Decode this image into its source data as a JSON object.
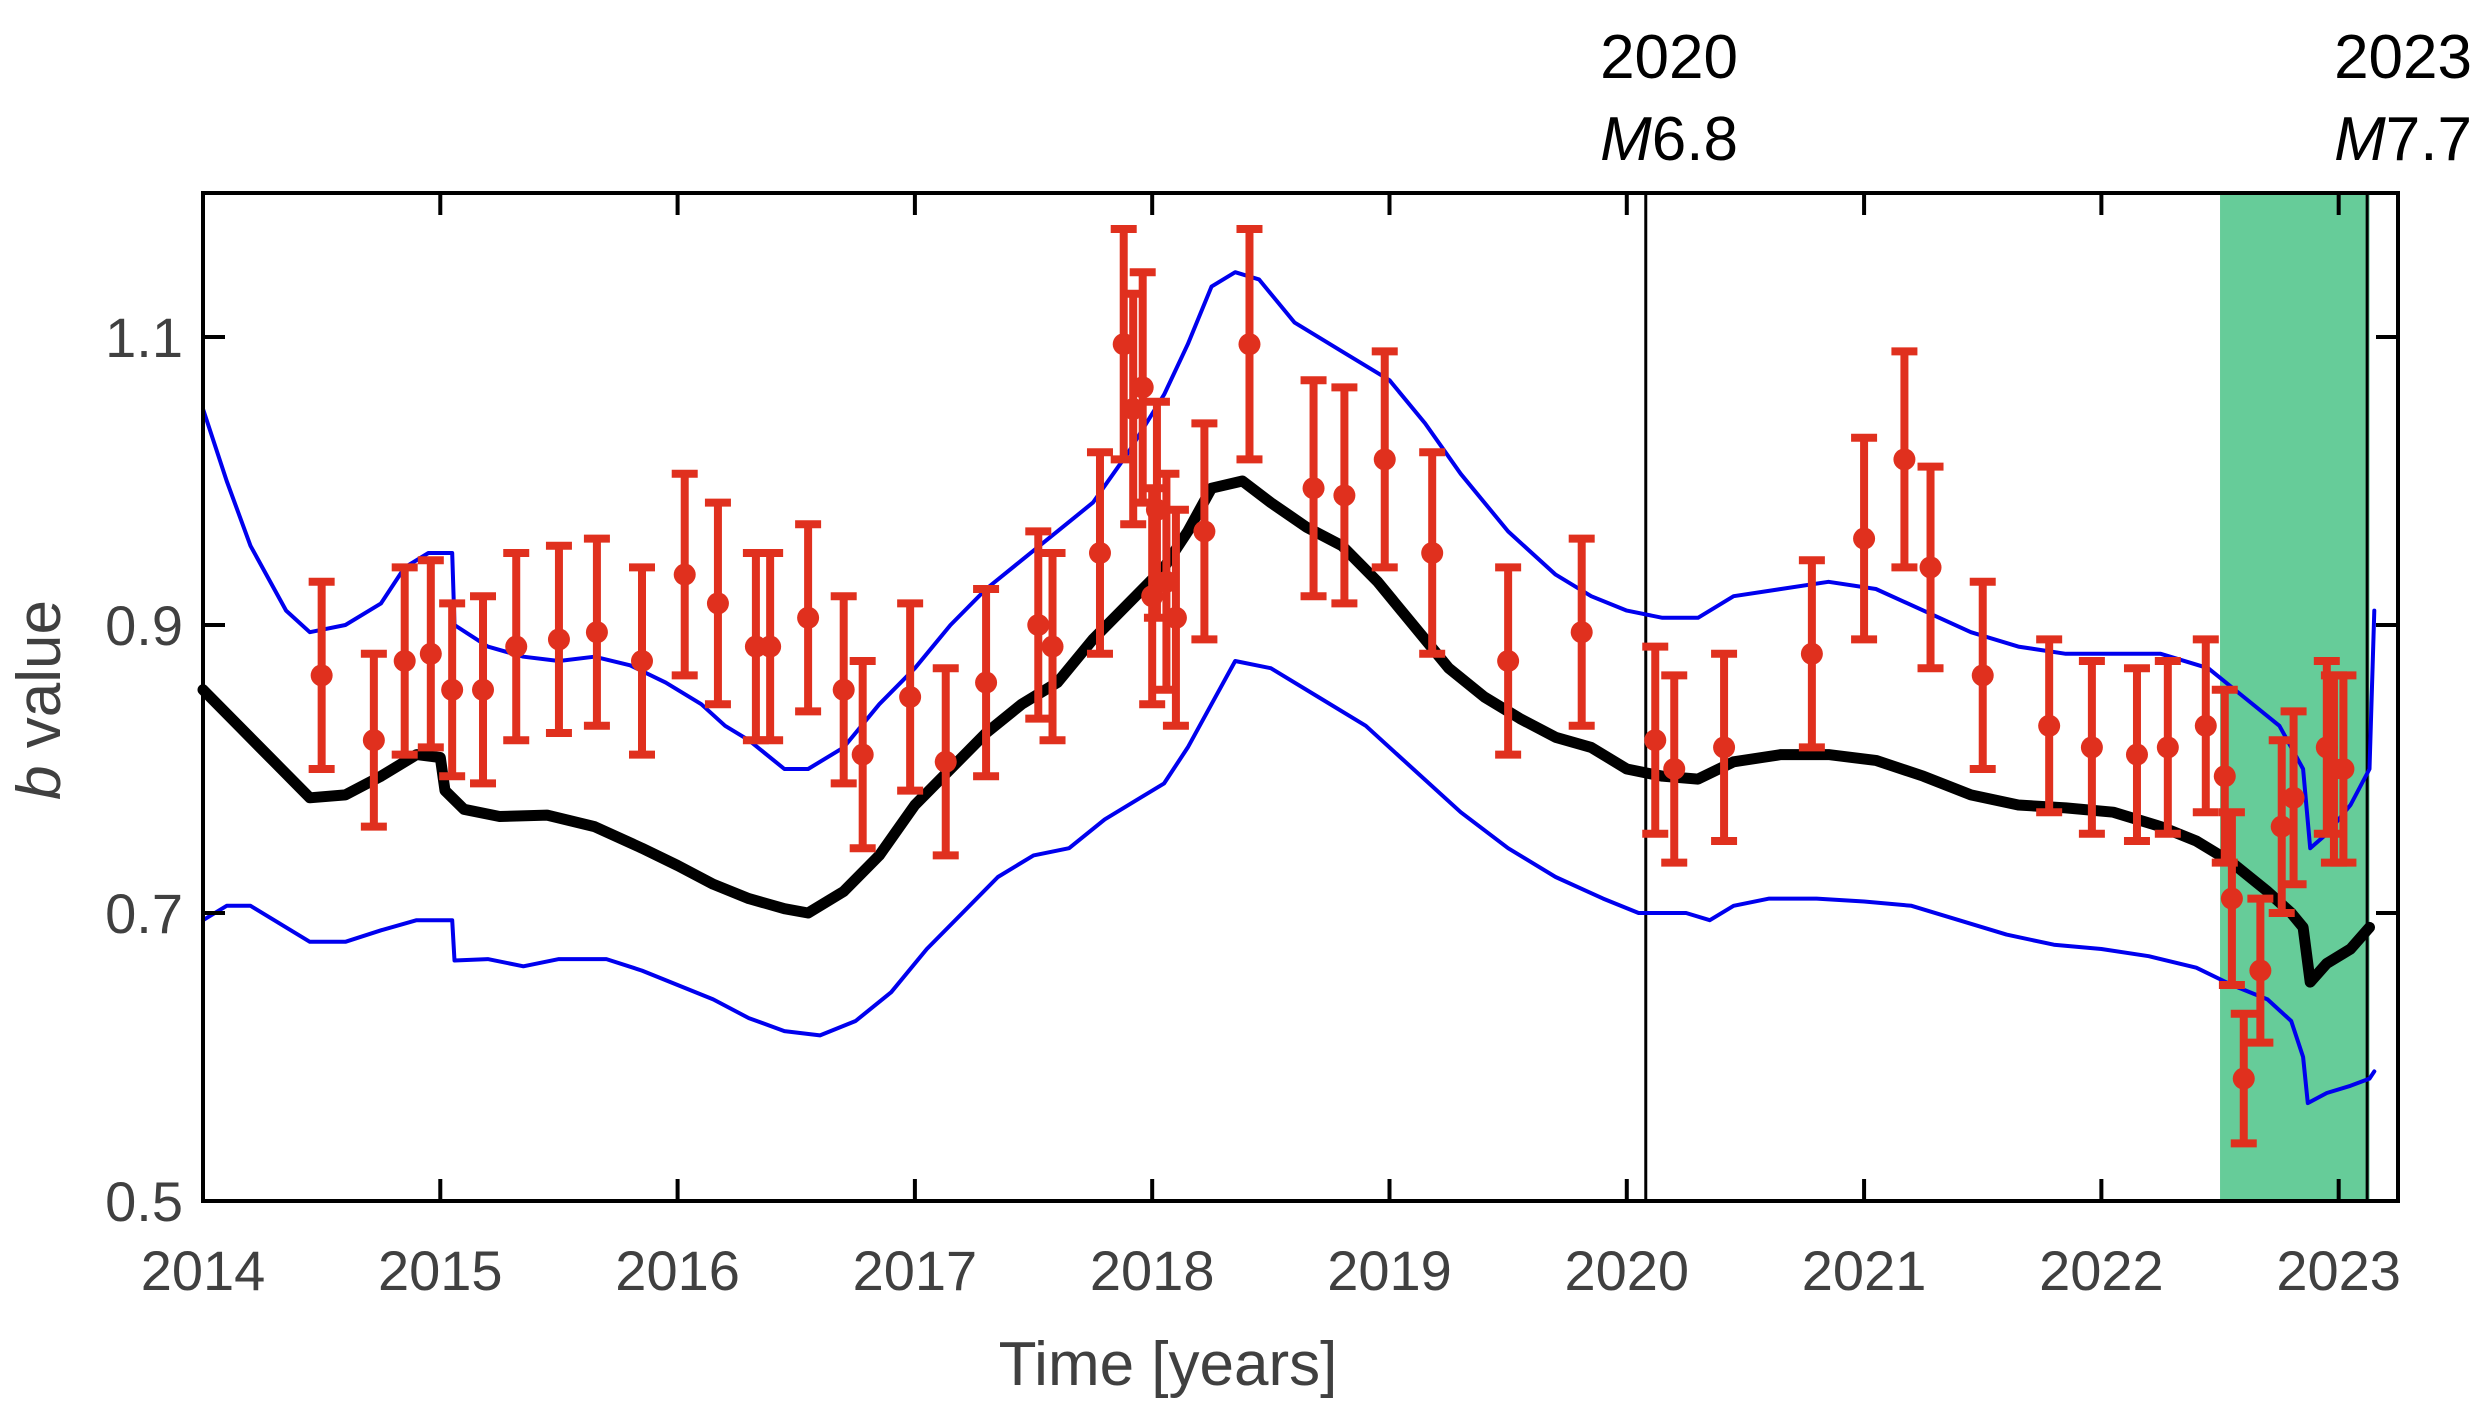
{
  "chart_data": {
    "type": "line",
    "xlabel": "Time [years]",
    "ylabel_italic": "b",
    "ylabel_rest": " value",
    "xlim": [
      2014,
      2023.25
    ],
    "ylim": [
      0.5,
      1.2
    ],
    "xticks": [
      "2014",
      "2015",
      "2016",
      "2017",
      "2018",
      "2019",
      "2020",
      "2021",
      "2022",
      "2023"
    ],
    "yticks": [
      "0.5",
      "0.7",
      "0.9",
      "1.1"
    ],
    "colors": {
      "mean": "#000000",
      "bounds": "#0000ee",
      "points": "#e0301e",
      "shade": "#66cc99",
      "axis": "#000000",
      "tick_text": "#404040"
    },
    "shaded_region": {
      "x": [
        2022.5,
        2023.13
      ]
    },
    "events": [
      {
        "x": 2020.08,
        "year": "2020",
        "mag_prefix": "M",
        "mag_value": "6.8"
      },
      {
        "x": 2023.12,
        "year": "2023",
        "mag_prefix": "M",
        "mag_value": "7.7"
      }
    ],
    "series": [
      {
        "name": "b-value mean",
        "style": "thick black line",
        "x": [
          2014.0,
          2014.15,
          2014.3,
          2014.45,
          2014.6,
          2014.75,
          2014.9,
          2015.0,
          2015.02,
          2015.1,
          2015.25,
          2015.45,
          2015.65,
          2015.85,
          2016.0,
          2016.15,
          2016.3,
          2016.45,
          2016.55,
          2016.7,
          2016.85,
          2017.0,
          2017.15,
          2017.3,
          2017.45,
          2017.6,
          2017.75,
          2017.9,
          2018.05,
          2018.15,
          2018.25,
          2018.38,
          2018.5,
          2018.65,
          2018.8,
          2018.95,
          2019.1,
          2019.25,
          2019.4,
          2019.55,
          2019.7,
          2019.85,
          2020.0,
          2020.15,
          2020.3,
          2020.45,
          2020.65,
          2020.85,
          2021.05,
          2021.25,
          2021.45,
          2021.65,
          2021.85,
          2022.05,
          2022.25,
          2022.4,
          2022.55,
          2022.7,
          2022.8,
          2022.85,
          2022.88,
          2022.95,
          2023.05,
          2023.13
        ],
        "y": [
          0.855,
          0.83,
          0.805,
          0.78,
          0.782,
          0.795,
          0.81,
          0.808,
          0.785,
          0.772,
          0.767,
          0.768,
          0.76,
          0.745,
          0.733,
          0.72,
          0.71,
          0.703,
          0.7,
          0.715,
          0.74,
          0.775,
          0.8,
          0.825,
          0.845,
          0.86,
          0.89,
          0.915,
          0.94,
          0.965,
          0.995,
          1.0,
          0.985,
          0.968,
          0.955,
          0.93,
          0.9,
          0.87,
          0.85,
          0.835,
          0.822,
          0.815,
          0.8,
          0.795,
          0.793,
          0.805,
          0.81,
          0.81,
          0.806,
          0.795,
          0.782,
          0.775,
          0.773,
          0.77,
          0.76,
          0.75,
          0.735,
          0.715,
          0.7,
          0.69,
          0.652,
          0.665,
          0.675,
          0.69
        ]
      },
      {
        "name": "upper bound",
        "style": "thin blue line",
        "x": [
          2014.0,
          2014.1,
          2014.2,
          2014.35,
          2014.45,
          2014.6,
          2014.75,
          2014.85,
          2014.95,
          2015.05,
          2015.06,
          2015.2,
          2015.35,
          2015.5,
          2015.65,
          2015.8,
          2015.95,
          2016.1,
          2016.2,
          2016.3,
          2016.45,
          2016.55,
          2016.7,
          2016.85,
          2017.0,
          2017.15,
          2017.3,
          2017.45,
          2017.6,
          2017.75,
          2017.9,
          2018.05,
          2018.15,
          2018.25,
          2018.35,
          2018.45,
          2018.6,
          2018.8,
          2019.0,
          2019.15,
          2019.3,
          2019.5,
          2019.7,
          2019.85,
          2020.0,
          2020.15,
          2020.3,
          2020.45,
          2020.65,
          2020.85,
          2021.05,
          2021.25,
          2021.45,
          2021.65,
          2021.85,
          2022.05,
          2022.25,
          2022.45,
          2022.6,
          2022.75,
          2022.85,
          2022.88,
          2022.95,
          2023.05,
          2023.13,
          2023.15
        ],
        "y": [
          1.05,
          1.0,
          0.955,
          0.91,
          0.895,
          0.9,
          0.915,
          0.94,
          0.95,
          0.95,
          0.9,
          0.885,
          0.878,
          0.875,
          0.878,
          0.872,
          0.86,
          0.845,
          0.83,
          0.82,
          0.8,
          0.8,
          0.815,
          0.845,
          0.87,
          0.9,
          0.925,
          0.945,
          0.965,
          0.985,
          1.02,
          1.06,
          1.095,
          1.135,
          1.145,
          1.14,
          1.11,
          1.09,
          1.07,
          1.04,
          1.005,
          0.965,
          0.935,
          0.92,
          0.91,
          0.905,
          0.905,
          0.92,
          0.925,
          0.93,
          0.925,
          0.91,
          0.895,
          0.885,
          0.88,
          0.88,
          0.88,
          0.87,
          0.85,
          0.83,
          0.8,
          0.745,
          0.755,
          0.775,
          0.8,
          0.91
        ]
      },
      {
        "name": "lower bound",
        "style": "thin blue line",
        "x": [
          2014.0,
          2014.1,
          2014.2,
          2014.3,
          2014.45,
          2014.6,
          2014.75,
          2014.9,
          2015.05,
          2015.06,
          2015.2,
          2015.35,
          2015.5,
          2015.7,
          2015.85,
          2016.0,
          2016.15,
          2016.3,
          2016.45,
          2016.6,
          2016.75,
          2016.9,
          2017.05,
          2017.2,
          2017.35,
          2017.5,
          2017.65,
          2017.8,
          2017.95,
          2018.05,
          2018.15,
          2018.25,
          2018.35,
          2018.5,
          2018.7,
          2018.9,
          2019.1,
          2019.3,
          2019.5,
          2019.7,
          2019.9,
          2020.05,
          2020.25,
          2020.35,
          2020.45,
          2020.6,
          2020.8,
          2021.0,
          2021.2,
          2021.4,
          2021.6,
          2021.8,
          2022.0,
          2022.2,
          2022.4,
          2022.55,
          2022.7,
          2022.8,
          2022.85,
          2022.87,
          2022.95,
          2023.05,
          2023.13,
          2023.15
        ],
        "y": [
          0.695,
          0.705,
          0.705,
          0.695,
          0.68,
          0.68,
          0.688,
          0.695,
          0.695,
          0.667,
          0.668,
          0.663,
          0.668,
          0.668,
          0.66,
          0.65,
          0.64,
          0.627,
          0.618,
          0.615,
          0.625,
          0.645,
          0.675,
          0.7,
          0.725,
          0.74,
          0.745,
          0.765,
          0.78,
          0.79,
          0.815,
          0.845,
          0.875,
          0.87,
          0.85,
          0.83,
          0.8,
          0.77,
          0.745,
          0.725,
          0.71,
          0.7,
          0.7,
          0.695,
          0.705,
          0.71,
          0.71,
          0.708,
          0.705,
          0.695,
          0.685,
          0.678,
          0.675,
          0.67,
          0.662,
          0.65,
          0.64,
          0.625,
          0.6,
          0.568,
          0.575,
          0.58,
          0.585,
          0.59
        ]
      }
    ],
    "points": {
      "name": "b-value estimates",
      "style": "red dots with error bars",
      "x": [
        2014.5,
        2014.72,
        2014.85,
        2014.96,
        2015.05,
        2015.18,
        2015.32,
        2015.5,
        2015.66,
        2015.85,
        2016.03,
        2016.17,
        2016.33,
        2016.39,
        2016.55,
        2016.7,
        2016.78,
        2016.98,
        2017.13,
        2017.3,
        2017.52,
        2017.58,
        2017.78,
        2017.88,
        2017.92,
        2017.96,
        2018.0,
        2018.02,
        2018.06,
        2018.1,
        2018.22,
        2018.41,
        2018.68,
        2018.81,
        2018.98,
        2019.18,
        2019.5,
        2019.81,
        2020.12,
        2020.2,
        2020.41,
        2020.78,
        2021.0,
        2021.17,
        2021.28,
        2021.5,
        2021.78,
        2021.96,
        2022.15,
        2022.28,
        2022.44,
        2022.52,
        2022.55,
        2022.6,
        2022.67,
        2022.76,
        2022.81,
        2022.95,
        2022.98,
        2023.02
      ],
      "y": [
        0.865,
        0.82,
        0.875,
        0.88,
        0.855,
        0.855,
        0.885,
        0.89,
        0.895,
        0.875,
        0.935,
        0.915,
        0.885,
        0.885,
        0.905,
        0.855,
        0.81,
        0.85,
        0.805,
        0.86,
        0.9,
        0.885,
        0.95,
        1.095,
        1.05,
        1.065,
        0.92,
        0.98,
        0.93,
        0.905,
        0.965,
        1.095,
        0.995,
        0.99,
        1.015,
        0.95,
        0.875,
        0.895,
        0.82,
        0.8,
        0.815,
        0.88,
        0.96,
        1.015,
        0.94,
        0.865,
        0.83,
        0.815,
        0.81,
        0.815,
        0.83,
        0.795,
        0.71,
        0.585,
        0.66,
        0.76,
        0.78,
        0.815,
        0.8,
        0.8
      ],
      "err": [
        0.065,
        0.06,
        0.065,
        0.065,
        0.06,
        0.065,
        0.065,
        0.065,
        0.065,
        0.065,
        0.07,
        0.07,
        0.065,
        0.065,
        0.065,
        0.065,
        0.065,
        0.065,
        0.065,
        0.065,
        0.065,
        0.065,
        0.07,
        0.08,
        0.08,
        0.08,
        0.075,
        0.075,
        0.075,
        0.075,
        0.075,
        0.08,
        0.075,
        0.075,
        0.075,
        0.07,
        0.065,
        0.065,
        0.065,
        0.065,
        0.065,
        0.065,
        0.07,
        0.075,
        0.07,
        0.065,
        0.06,
        0.06,
        0.06,
        0.06,
        0.06,
        0.06,
        0.06,
        0.045,
        0.05,
        0.06,
        0.06,
        0.06,
        0.065,
        0.065
      ]
    }
  }
}
